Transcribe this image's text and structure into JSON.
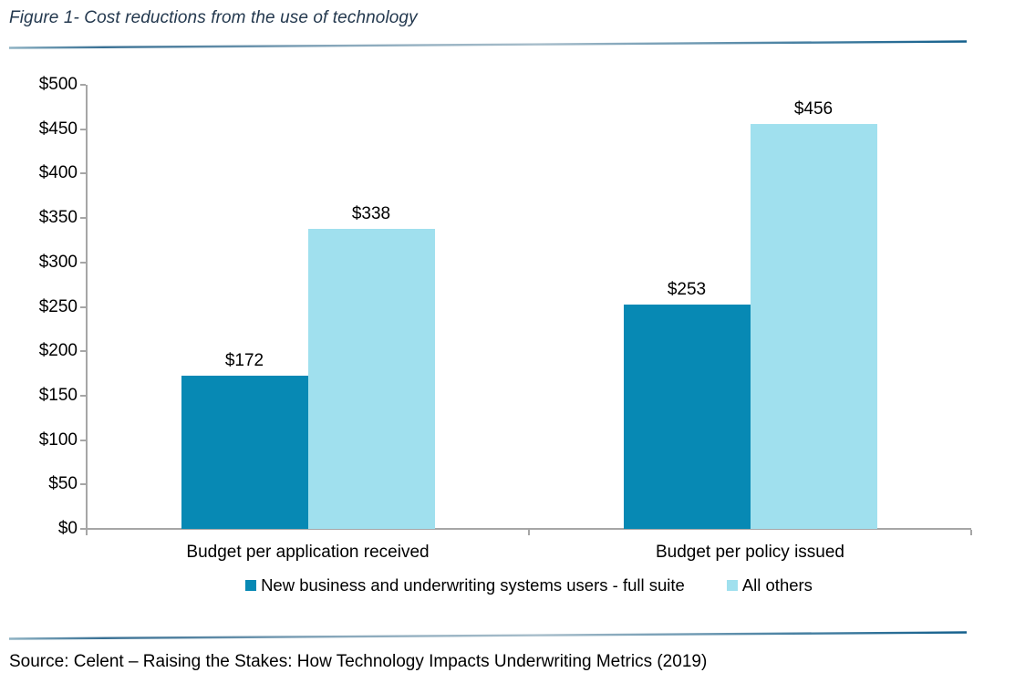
{
  "chart_data": {
    "type": "bar",
    "title": "Figure 1- Cost reductions from the use of technology",
    "categories": [
      "Budget per application received",
      "Budget per policy issued"
    ],
    "series": [
      {
        "name": "New business and underwriting systems users - full suite",
        "color": "#0789B4",
        "values": [
          172,
          253
        ]
      },
      {
        "name": "All others",
        "color": "#A0E0EE",
        "values": [
          338,
          456
        ]
      }
    ],
    "value_prefix": "$",
    "xlabel": "",
    "ylabel": "",
    "ylim": [
      0,
      500
    ],
    "ytick_step": 50,
    "ytick_labels": [
      "$0",
      "$50",
      "$100",
      "$150",
      "$200",
      "$250",
      "$300",
      "$350",
      "$400",
      "$450",
      "$500"
    ],
    "grid": false,
    "legend_position": "bottom"
  },
  "source_note": "Source: Celent – Raising the Stakes: How Technology Impacts Underwriting Metrics (2019)",
  "colors": {
    "axis": "#A6A6A6",
    "title_text": "#24394F",
    "label_text": "#000000"
  }
}
